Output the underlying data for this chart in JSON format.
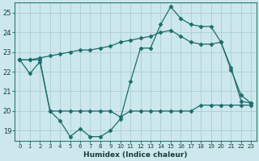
{
  "xlabel": "Humidex (Indice chaleur)",
  "background_color": "#cce8ec",
  "grid_color": "#aacdd4",
  "line_color": "#1a6e6a",
  "x": [
    0,
    1,
    2,
    3,
    4,
    5,
    6,
    7,
    8,
    9,
    10,
    11,
    12,
    13,
    14,
    15,
    16,
    17,
    18,
    19,
    20,
    21,
    22,
    23
  ],
  "line1": [
    22.6,
    21.9,
    22.5,
    20.0,
    19.5,
    18.7,
    19.1,
    18.7,
    18.7,
    19.0,
    19.6,
    21.5,
    23.2,
    23.2,
    24.4,
    25.3,
    24.7,
    24.4,
    24.3,
    24.3,
    23.5,
    22.1,
    20.8,
    20.4
  ],
  "line2": [
    22.6,
    22.6,
    22.7,
    22.8,
    22.9,
    23.0,
    23.1,
    23.1,
    23.2,
    23.3,
    23.5,
    23.6,
    23.7,
    23.8,
    24.0,
    24.1,
    23.8,
    23.5,
    23.4,
    23.4,
    23.5,
    22.2,
    20.5,
    20.4
  ],
  "line3": [
    22.6,
    22.6,
    22.6,
    20.0,
    20.0,
    20.0,
    20.0,
    20.0,
    20.0,
    20.0,
    19.7,
    20.0,
    20.0,
    20.0,
    20.0,
    20.0,
    20.0,
    20.0,
    20.3,
    20.3,
    20.3,
    20.3,
    20.3,
    20.3
  ],
  "ylim": [
    18.5,
    25.5
  ],
  "yticks": [
    19,
    20,
    21,
    22,
    23,
    24,
    25
  ],
  "xlim": [
    -0.5,
    23.5
  ]
}
